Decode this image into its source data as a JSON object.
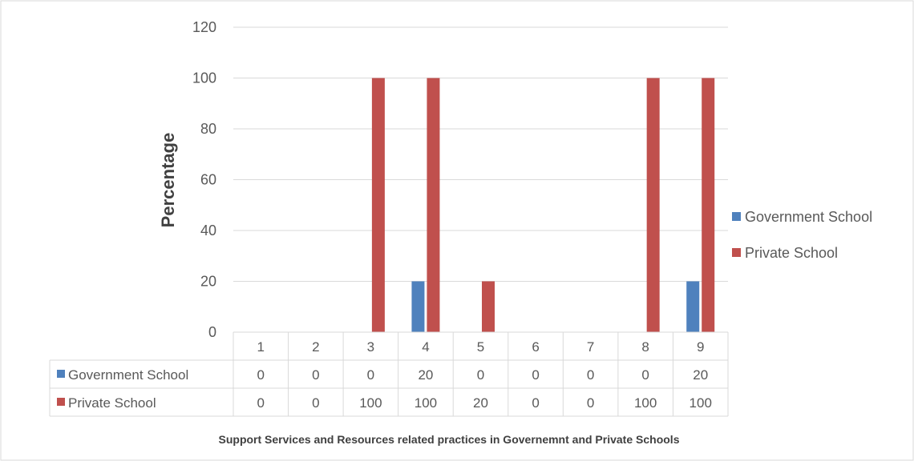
{
  "chart_data": {
    "type": "bar",
    "categories": [
      "1",
      "2",
      "3",
      "4",
      "5",
      "6",
      "7",
      "8",
      "9"
    ],
    "series": [
      {
        "name": "Government School",
        "color": "#4F81BD",
        "values": [
          0,
          0,
          0,
          20,
          0,
          0,
          0,
          0,
          20
        ]
      },
      {
        "name": "Private School",
        "color": "#C0504D",
        "values": [
          0,
          0,
          100,
          100,
          20,
          0,
          0,
          100,
          100
        ]
      }
    ],
    "title": "",
    "xlabel": "Support Services and Resources related practices in Governemnt and Private Schools",
    "ylabel": "Percentage",
    "ylim": [
      0,
      120
    ],
    "yticks": [
      0,
      20,
      40,
      60,
      80,
      100,
      120
    ],
    "grid": true,
    "legend_position": "right",
    "data_table": true
  }
}
